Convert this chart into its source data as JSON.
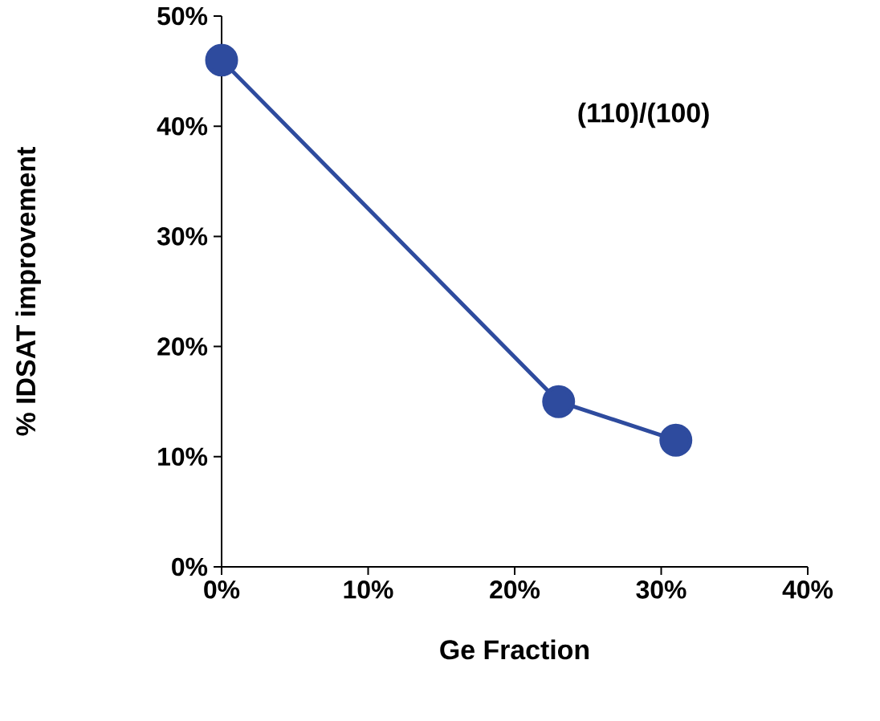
{
  "chart_data": {
    "type": "line",
    "xlabel": "Ge Fraction",
    "ylabel": "% IDSAT improvement",
    "annotations": [
      "(110)/(100)"
    ],
    "x": [
      0,
      23,
      31
    ],
    "series": [
      {
        "color": "#2e4b9e",
        "values": [
          46,
          15,
          11.5
        ]
      }
    ],
    "xlim": [
      0,
      40
    ],
    "ylim": [
      0,
      50
    ],
    "xticks": [
      {
        "value": 0,
        "label": "0%"
      },
      {
        "value": 10,
        "label": "10%"
      },
      {
        "value": 20,
        "label": "20%"
      },
      {
        "value": 30,
        "label": "30%"
      },
      {
        "value": 40,
        "label": "40%"
      }
    ],
    "yticks": [
      {
        "value": 0,
        "label": "0%"
      },
      {
        "value": 10,
        "label": "10%"
      },
      {
        "value": 20,
        "label": "20%"
      },
      {
        "value": 30,
        "label": "30%"
      },
      {
        "value": 40,
        "label": "40%"
      },
      {
        "value": 50,
        "label": "50%"
      }
    ],
    "grid": false,
    "marker": "circle",
    "line_style": "solid"
  }
}
